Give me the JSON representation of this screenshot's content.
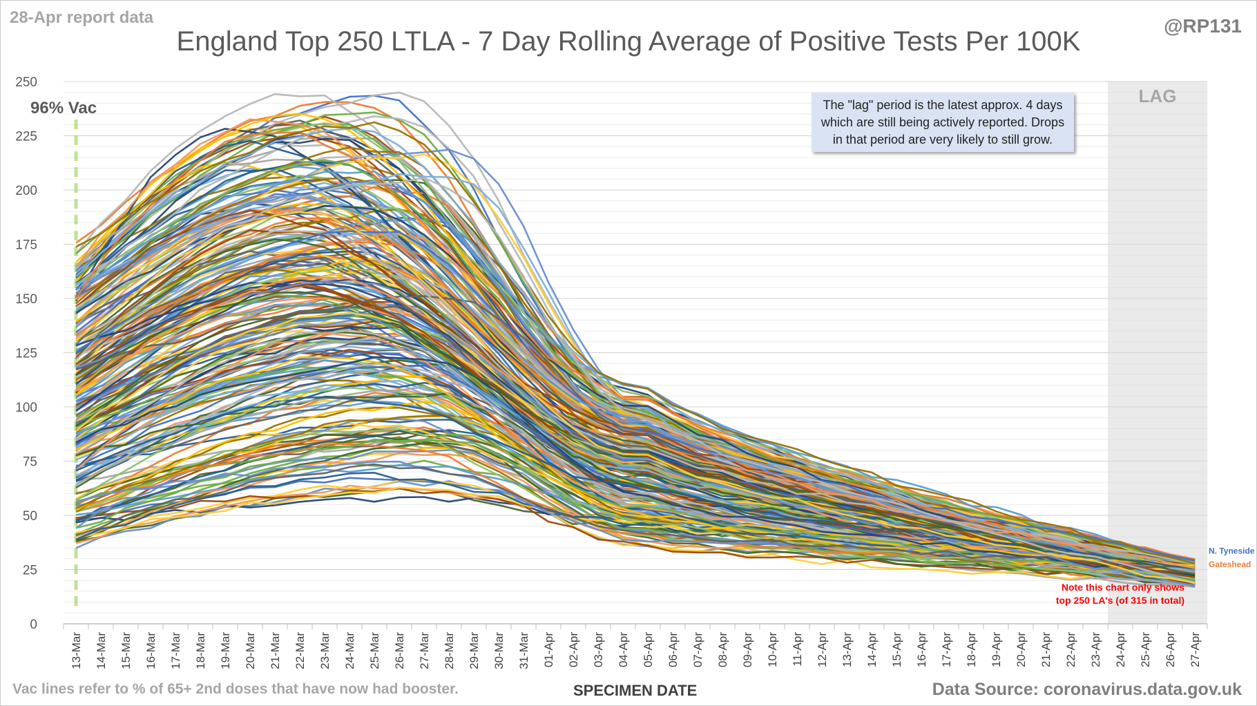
{
  "header": {
    "report_date": "28-Apr report data",
    "handle": "@RP131"
  },
  "footer": {
    "vac_note": "Vac lines refer to % of 65+ 2nd doses that have now had booster.",
    "source": "Data Source: coronavirus.data.gov.uk"
  },
  "chart_data": {
    "type": "line",
    "title": "England Top 250 LTLA - 7 Day Rolling Average of Positive Tests Per 100K",
    "xlabel": "SPECIMEN DATE",
    "ylabel": "",
    "ylim": [
      0,
      250
    ],
    "yticks": [
      0,
      25,
      50,
      75,
      100,
      125,
      150,
      175,
      200,
      225,
      250
    ],
    "grid": true,
    "categories": [
      "13-Mar",
      "14-Mar",
      "15-Mar",
      "16-Mar",
      "17-Mar",
      "18-Mar",
      "19-Mar",
      "20-Mar",
      "21-Mar",
      "22-Mar",
      "23-Mar",
      "24-Mar",
      "25-Mar",
      "26-Mar",
      "27-Mar",
      "28-Mar",
      "29-Mar",
      "30-Mar",
      "31-Mar",
      "01-Apr",
      "02-Apr",
      "03-Apr",
      "04-Apr",
      "05-Apr",
      "06-Apr",
      "07-Apr",
      "08-Apr",
      "09-Apr",
      "10-Apr",
      "11-Apr",
      "12-Apr",
      "13-Apr",
      "14-Apr",
      "15-Apr",
      "16-Apr",
      "17-Apr",
      "18-Apr",
      "19-Apr",
      "20-Apr",
      "21-Apr",
      "22-Apr",
      "23-Apr",
      "24-Apr",
      "25-Apr",
      "26-Apr",
      "27-Apr"
    ],
    "lag": {
      "label": "LAG",
      "start": "23-Apr",
      "end": "27-Apr"
    },
    "vac_line": {
      "label": "96% Vac",
      "x": "13-Mar",
      "color": "#92d050"
    },
    "callout": "The \"lag\" period is the latest approx. 4 days which are still being actively reported. Drops in that period are very likely to still grow.",
    "note": [
      "Note this chart only shows",
      "top 250 LA's (of 315 in total)"
    ],
    "note_color": "#ff0000",
    "series_total": 250,
    "series_labelled": [
      {
        "name": "N. Tyneside",
        "color": "#4472c4",
        "end_value": 31
      },
      {
        "name": "Gateshead",
        "color": "#ed7d31",
        "end_value": 28
      }
    ],
    "palette": [
      "#4472c4",
      "#ed7d31",
      "#a5a5a5",
      "#ffc000",
      "#5b9bd5",
      "#70ad47",
      "#264478",
      "#9e480e",
      "#636363",
      "#997300",
      "#255e91",
      "#43682b",
      "#698ed0",
      "#f1975a",
      "#b7b7b7",
      "#ffcd33",
      "#7cafdd",
      "#8cc168"
    ],
    "sample_series": [
      {
        "start": 170,
        "peak": 236,
        "peak_day": 11,
        "mid": 100,
        "end": 28
      },
      {
        "start": 160,
        "peak": 222,
        "peak_day": 8,
        "mid": 95,
        "end": 26
      },
      {
        "start": 150,
        "peak": 210,
        "peak_day": 13,
        "mid": 102,
        "end": 25
      },
      {
        "start": 140,
        "peak": 190,
        "peak_day": 9,
        "mid": 90,
        "end": 24
      },
      {
        "start": 120,
        "peak": 170,
        "peak_day": 10,
        "mid": 82,
        "end": 22
      },
      {
        "start": 100,
        "peak": 150,
        "peak_day": 11,
        "mid": 72,
        "end": 21
      },
      {
        "start": 80,
        "peak": 125,
        "peak_day": 12,
        "mid": 62,
        "end": 20
      },
      {
        "start": 60,
        "peak": 100,
        "peak_day": 13,
        "mid": 55,
        "end": 19
      },
      {
        "start": 50,
        "peak": 86,
        "peak_day": 14,
        "mid": 48,
        "end": 18
      },
      {
        "start": 43,
        "peak": 67,
        "peak_day": 14,
        "mid": 40,
        "end": 17
      }
    ]
  }
}
